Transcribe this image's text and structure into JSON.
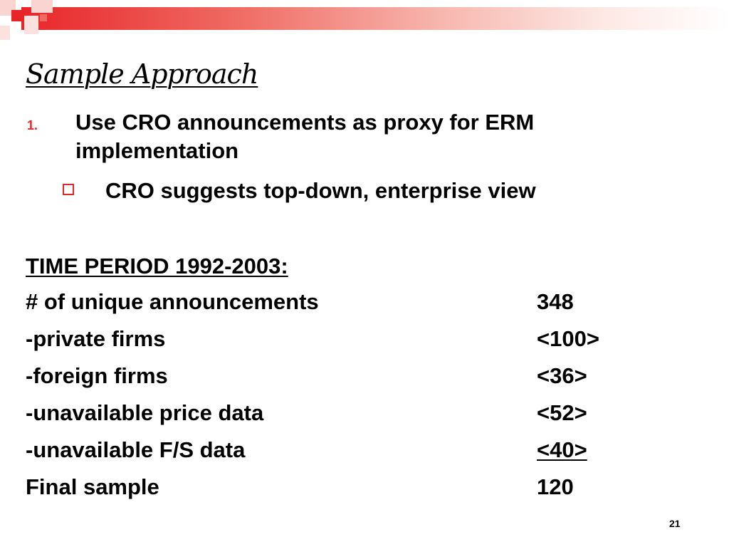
{
  "colors": {
    "accent": "#e8262a",
    "text": "#000000",
    "background": "#ffffff"
  },
  "slide": {
    "title": "Sample Approach",
    "bullet1": {
      "number": "1.",
      "text": "Use CRO announcements as proxy for ERM implementation"
    },
    "bullet2": {
      "icon": "hollow-square-bullet",
      "text": "CRO suggests top-down, enterprise view"
    },
    "period_heading": "TIME PERIOD 1992-2003:",
    "rows": [
      {
        "label": "# of unique announcements",
        "value": "348"
      },
      {
        "label": "-private firms",
        "value": "<100>"
      },
      {
        "label": "-foreign firms",
        "value": "<36>"
      },
      {
        "label": "-unavailable price data",
        "value": "<52>"
      },
      {
        "label": "-unavailable F/S data",
        "value": "<40>"
      },
      {
        "label": "Final sample",
        "value": "120"
      }
    ],
    "page_number": "21"
  }
}
